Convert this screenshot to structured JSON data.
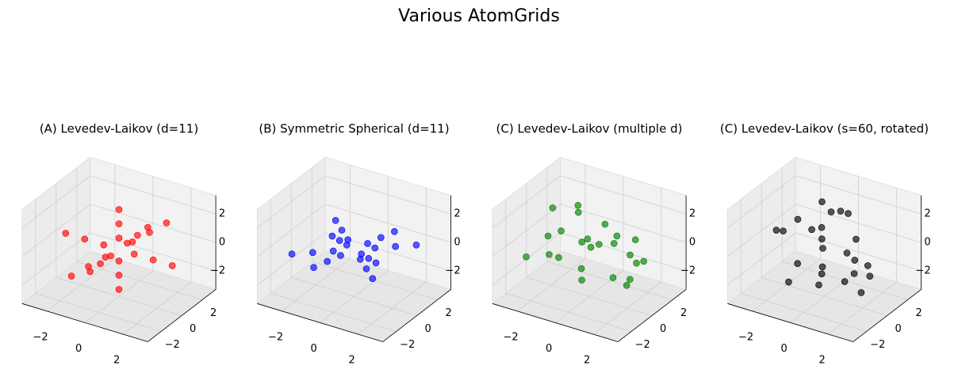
{
  "title": "Various AtomGrids",
  "chart_data": [
    {
      "type": "scatter3d",
      "title": "(A) Levedev-Laikov (d=11)",
      "xlim": [
        -3.3,
        3.3
      ],
      "ylim": [
        -3.3,
        3.3
      ],
      "zlim": [
        -3.3,
        3.3
      ],
      "xticks": [
        {
          "value": -2,
          "label": "−2"
        },
        0,
        2
      ],
      "yticks": [
        {
          "value": -2,
          "label": "−2"
        },
        0,
        2
      ],
      "zticks": [
        {
          "value": -2,
          "label": "−2"
        },
        0,
        2
      ],
      "series": [
        {
          "color": "#ff0000",
          "x": [
            0.8,
            -0.8,
            0,
            0,
            0,
            0,
            0.46,
            -0.46,
            1.8,
            -1.8,
            0,
            0,
            0,
            0,
            1.04,
            -1.04,
            2.8,
            -2.8,
            0,
            0,
            0,
            0,
            1.62,
            -1.62
          ],
          "y": [
            0,
            0,
            0.8,
            -0.8,
            0,
            0,
            0.46,
            -0.46,
            0,
            0,
            1.8,
            -1.8,
            0,
            0,
            1.04,
            -1.04,
            0,
            0,
            2.8,
            -2.8,
            0,
            0,
            1.62,
            -1.62
          ],
          "z": [
            0,
            0,
            0,
            0,
            0.8,
            -0.8,
            0.46,
            -0.46,
            0,
            0,
            0,
            0,
            1.8,
            -1.8,
            1.04,
            -1.04,
            0,
            0,
            0,
            0,
            2.8,
            -2.8,
            1.62,
            -1.62
          ]
        }
      ]
    },
    {
      "type": "scatter3d",
      "title": "(B) Symmetric Spherical (d=11)",
      "xlim": [
        -3.3,
        3.3
      ],
      "ylim": [
        -3.3,
        3.3
      ],
      "zlim": [
        -3.3,
        3.3
      ],
      "xticks": [
        {
          "value": -2,
          "label": "−2"
        },
        0,
        2
      ],
      "yticks": [
        {
          "value": -2,
          "label": "−2"
        },
        0,
        2
      ],
      "zticks": [
        {
          "value": -2,
          "label": "−2"
        },
        0,
        2
      ],
      "series": [
        {
          "color": "#0000ff",
          "x": [
            0.71,
            -0.71,
            0.71,
            -0.71,
            0.71,
            -0.71,
            0,
            0,
            1.41,
            -1.41,
            1.41,
            -1.41,
            1.41,
            -1.41,
            0,
            0,
            2.12,
            -2.12,
            2.12,
            -2.12,
            2.12,
            -2.12,
            0,
            0
          ],
          "y": [
            0.71,
            0.71,
            -0.71,
            -0.71,
            0,
            0,
            0.71,
            -0.71,
            1.41,
            1.41,
            -1.41,
            -1.41,
            0,
            0,
            1.41,
            -1.41,
            2.12,
            2.12,
            -2.12,
            -2.12,
            0,
            0,
            2.12,
            -2.12
          ],
          "z": [
            0,
            0,
            0,
            0,
            0.71,
            -0.71,
            -0.71,
            0.71,
            0,
            0,
            0,
            0,
            1.41,
            -1.41,
            -1.41,
            1.41,
            0,
            0,
            0,
            0,
            2.12,
            -2.12,
            -2.12,
            2.12
          ]
        }
      ]
    },
    {
      "type": "scatter3d",
      "title": "(C) Levedev-Laikov (multiple d)",
      "xlim": [
        -3.3,
        3.3
      ],
      "ylim": [
        -3.3,
        3.3
      ],
      "zlim": [
        -3.3,
        3.3
      ],
      "xticks": [
        {
          "value": -2,
          "label": "−2"
        },
        0,
        2
      ],
      "yticks": [
        {
          "value": -2,
          "label": "−2"
        },
        0,
        2
      ],
      "zticks": [
        {
          "value": -2,
          "label": "−2"
        },
        0,
        2
      ],
      "series": [
        {
          "color": "#008000",
          "x": [
            0.3,
            -1.2,
            2.1,
            -0.5,
            1.4,
            -2.0,
            0.8,
            -0.9,
            1.9,
            -1.6,
            0.1,
            2.4,
            -2.3,
            0.6,
            -0.2,
            1.1,
            -1.4,
            0.9,
            -0.7,
            1.6,
            -2.5,
            0.4,
            2.7,
            -1.0
          ],
          "y": [
            -0.4,
            1.5,
            0.6,
            -1.8,
            2.0,
            -0.3,
            -2.2,
            0.9,
            -1.1,
            1.9,
            2.5,
            -0.8,
            0.7,
            1.2,
            -2.6,
            -0.5,
            -1.3,
            2.3,
            0.2,
            1.0,
            -1.5,
            -0.9,
            0.3,
            2.8
          ],
          "z": [
            0.5,
            -0.8,
            1.2,
            2.1,
            -1.5,
            0.3,
            -0.6,
            -2.2,
            1.8,
            0.9,
            -0.4,
            -1.1,
            1.6,
            -2.4,
            0.8,
            2.5,
            -0.2,
            -1.3,
            2.7,
            -2.0,
            -0.7,
            1.4,
            0.1,
            -1.6
          ]
        }
      ]
    },
    {
      "type": "scatter3d",
      "title": "(C) Levedev-Laikov (s=60, rotated)",
      "xlim": [
        -3.3,
        3.3
      ],
      "ylim": [
        -3.3,
        3.3
      ],
      "zlim": [
        -3.3,
        3.3
      ],
      "xticks": [
        {
          "value": -2,
          "label": "−2"
        },
        0,
        2
      ],
      "yticks": [
        {
          "value": -2,
          "label": "−2"
        },
        0,
        2
      ],
      "zticks": [
        {
          "value": -2,
          "label": "−2"
        },
        0,
        2
      ],
      "series": [
        {
          "color": "#000000",
          "x": [
            -0.4,
            1.5,
            0.6,
            -1.8,
            2.0,
            -0.3,
            -2.2,
            0.9,
            -1.1,
            1.9,
            2.5,
            -0.8,
            0.7,
            1.2,
            -2.6,
            -0.5,
            -1.3,
            2.3,
            0.2,
            1.0,
            -1.5,
            -0.9,
            0.3,
            2.8
          ],
          "y": [
            0.5,
            -0.8,
            1.2,
            2.1,
            -1.5,
            0.3,
            -0.6,
            -2.2,
            1.8,
            0.9,
            -0.4,
            -1.1,
            1.6,
            -2.4,
            0.8,
            2.5,
            -0.2,
            -1.3,
            2.7,
            -2.0,
            -0.7,
            1.4,
            0.1,
            -1.6
          ],
          "z": [
            0.3,
            -1.2,
            2.1,
            -0.5,
            1.4,
            -2.0,
            0.8,
            -0.9,
            1.9,
            -1.6,
            0.1,
            2.4,
            -2.3,
            0.6,
            -0.2,
            1.1,
            -1.4,
            0.9,
            -0.7,
            1.6,
            -2.5,
            0.4,
            2.7,
            -1.0
          ]
        }
      ]
    }
  ]
}
